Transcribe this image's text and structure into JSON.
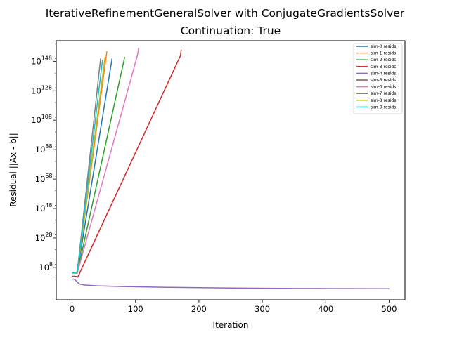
{
  "chart_data": {
    "type": "line",
    "title": "IterativeRefinementGeneralSolver with ConjugateGradientsSolver",
    "subtitle": "Continuation: True",
    "xlabel": "Iteration",
    "ylabel": "Residual ||Ax - b||",
    "xlim": [
      -25,
      525
    ],
    "ylim": [
      -14,
      162
    ],
    "yscale": "log",
    "grid": false,
    "legend_position": "top-right",
    "x_ticks": [
      {
        "value": 0,
        "label": "0"
      },
      {
        "value": 100,
        "label": "100"
      },
      {
        "value": 200,
        "label": "200"
      },
      {
        "value": 300,
        "label": "300"
      },
      {
        "value": 400,
        "label": "400"
      },
      {
        "value": 500,
        "label": "500"
      }
    ],
    "y_ticks": [
      {
        "exponent": 8,
        "base": "10",
        "exp": "8"
      },
      {
        "exponent": 28,
        "base": "10",
        "exp": "28"
      },
      {
        "exponent": 48,
        "base": "10",
        "exp": "48"
      },
      {
        "exponent": 68,
        "base": "10",
        "exp": "68"
      },
      {
        "exponent": 88,
        "base": "10",
        "exp": "88"
      },
      {
        "exponent": 108,
        "base": "10",
        "exp": "108"
      },
      {
        "exponent": 128,
        "base": "10",
        "exp": "128"
      },
      {
        "exponent": 148,
        "base": "10",
        "exp": "148"
      }
    ],
    "series": [
      {
        "name": "sim-0 resids",
        "color": "#1f77b4",
        "x": [
          0,
          5,
          8,
          63
        ],
        "log10_y": [
          4,
          4,
          4.5,
          150
        ]
      },
      {
        "name": "sim-1 resids",
        "color": "#ff7f0e",
        "x": [
          0,
          5,
          8,
          54,
          55
        ],
        "log10_y": [
          4,
          4,
          4.5,
          152,
          155
        ]
      },
      {
        "name": "sim-2 resids",
        "color": "#2ca02c",
        "x": [
          0,
          5,
          8,
          83
        ],
        "log10_y": [
          4,
          4,
          4,
          151
        ]
      },
      {
        "name": "sim-3 resids",
        "color": "#d62728",
        "x": [
          0,
          5,
          9,
          171,
          172
        ],
        "log10_y": [
          2,
          2,
          1.5,
          152,
          156
        ]
      },
      {
        "name": "sim-4 resids",
        "color": "#9467bd",
        "x": [
          0,
          3,
          5,
          8,
          12,
          20,
          40,
          80,
          150,
          250,
          350,
          500
        ],
        "log10_y": [
          0,
          0,
          -0.5,
          -2,
          -3.3,
          -4,
          -4.5,
          -5,
          -5.5,
          -6,
          -6.3,
          -6.5
        ]
      },
      {
        "name": "sim-5 resids",
        "color": "#8c564b",
        "x": [],
        "log10_y": []
      },
      {
        "name": "sim-6 resids",
        "color": "#e377c2",
        "x": [
          0,
          5,
          8,
          103,
          105
        ],
        "log10_y": [
          4,
          4,
          4,
          152,
          157
        ]
      },
      {
        "name": "sim-7 resids",
        "color": "#7f7f7f",
        "x": [
          0,
          5,
          8,
          45
        ],
        "log10_y": [
          4,
          4,
          4.5,
          150
        ]
      },
      {
        "name": "sim-8 resids",
        "color": "#bcbd22",
        "x": [
          0,
          5,
          8,
          52
        ],
        "log10_y": [
          4,
          4,
          4.5,
          151
        ]
      },
      {
        "name": "sim-9 resids",
        "color": "#17becf",
        "x": [
          0,
          5,
          8,
          48
        ],
        "log10_y": [
          4.5,
          4.5,
          5,
          149
        ]
      }
    ]
  }
}
